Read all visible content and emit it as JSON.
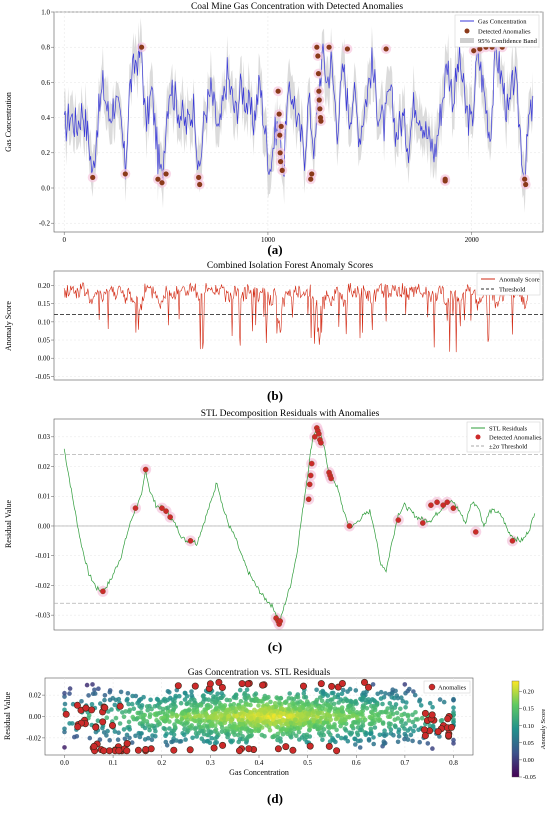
{
  "panels": {
    "a": {
      "label": "(a)"
    },
    "b": {
      "label": "(b)"
    },
    "c": {
      "label": "(c)"
    },
    "d": {
      "label": "(d)"
    }
  },
  "colors": {
    "gas_line": "#3a3ad8",
    "band": "#cfcfcf",
    "anomaly_a": "#8b3a1a",
    "score_line": "#d22a14",
    "threshold": "#333333",
    "stl_line": "#2e9c3a",
    "anomaly_c": "#cc2a2a",
    "highlight": "#f6c7de",
    "colormap": [
      "#440154",
      "#3b528b",
      "#21918c",
      "#5ec962",
      "#fde725"
    ]
  },
  "chart_data": [
    {
      "type": "line",
      "title": "Coal Mine Gas Concentration with Detected Anomalies",
      "xlabel": "",
      "ylabel": "Gas Concentration",
      "xlim": [
        -50,
        2350
      ],
      "ylim": [
        -0.25,
        1.0
      ],
      "xticks": [
        0,
        1000,
        2000
      ],
      "xtick_labels": [
        "0",
        "1000",
        "2000"
      ],
      "yticks": [
        -0.2,
        0.0,
        0.2,
        0.4,
        0.6,
        0.8,
        1.0
      ],
      "ytick_labels": [
        "-0.2",
        "0.0",
        "0.2",
        "0.4",
        "0.6",
        "0.8",
        "1.0"
      ],
      "grid": true,
      "legend_position": "top-right",
      "legend": [
        "Gas Concentration",
        "Detected Anomalies",
        "95% Confidence Band"
      ],
      "series_anchors": [
        [
          0,
          0.33
        ],
        [
          30,
          0.42
        ],
        [
          60,
          0.35
        ],
        [
          90,
          0.45
        ],
        [
          120,
          0.28
        ],
        [
          140,
          0.06
        ],
        [
          160,
          0.35
        ],
        [
          190,
          0.58
        ],
        [
          220,
          0.4
        ],
        [
          250,
          0.5
        ],
        [
          280,
          0.35
        ],
        [
          300,
          0.1
        ],
        [
          320,
          0.55
        ],
        [
          350,
          0.72
        ],
        [
          380,
          0.78
        ],
        [
          400,
          0.35
        ],
        [
          430,
          0.55
        ],
        [
          460,
          0.18
        ],
        [
          480,
          0.04
        ],
        [
          500,
          0.4
        ],
        [
          520,
          0.6
        ],
        [
          560,
          0.45
        ],
        [
          600,
          0.35
        ],
        [
          640,
          0.48
        ],
        [
          660,
          0.05
        ],
        [
          690,
          0.42
        ],
        [
          720,
          0.55
        ],
        [
          760,
          0.3
        ],
        [
          800,
          0.65
        ],
        [
          840,
          0.42
        ],
        [
          870,
          0.58
        ],
        [
          900,
          0.47
        ],
        [
          930,
          0.38
        ],
        [
          960,
          0.6
        ],
        [
          990,
          0.28
        ],
        [
          1010,
          0.12
        ],
        [
          1040,
          0.35
        ],
        [
          1060,
          0.3
        ],
        [
          1080,
          0.1
        ],
        [
          1090,
          0.45
        ],
        [
          1120,
          0.55
        ],
        [
          1150,
          0.35
        ],
        [
          1180,
          0.2
        ],
        [
          1200,
          0.5
        ],
        [
          1230,
          0.2
        ],
        [
          1250,
          0.56
        ],
        [
          1270,
          0.78
        ],
        [
          1290,
          0.6
        ],
        [
          1310,
          0.72
        ],
        [
          1340,
          0.35
        ],
        [
          1370,
          0.68
        ],
        [
          1400,
          0.4
        ],
        [
          1420,
          0.55
        ],
        [
          1450,
          0.3
        ],
        [
          1480,
          0.5
        ],
        [
          1510,
          0.7
        ],
        [
          1540,
          0.45
        ],
        [
          1570,
          0.35
        ],
        [
          1600,
          0.55
        ],
        [
          1630,
          0.3
        ],
        [
          1660,
          0.4
        ],
        [
          1690,
          0.25
        ],
        [
          1720,
          0.5
        ],
        [
          1750,
          0.42
        ],
        [
          1780,
          0.3
        ],
        [
          1820,
          0.2
        ],
        [
          1850,
          0.45
        ],
        [
          1880,
          0.72
        ],
        [
          1910,
          0.5
        ],
        [
          1940,
          0.75
        ],
        [
          1970,
          0.45
        ],
        [
          2000,
          0.35
        ],
        [
          2030,
          0.78
        ],
        [
          2060,
          0.55
        ],
        [
          2090,
          0.3
        ],
        [
          2120,
          0.78
        ],
        [
          2150,
          0.6
        ],
        [
          2180,
          0.4
        ],
        [
          2210,
          0.65
        ],
        [
          2240,
          0.3
        ],
        [
          2260,
          0.02
        ],
        [
          2280,
          0.38
        ],
        [
          2300,
          0.45
        ]
      ],
      "anomalies": [
        [
          140,
          0.06
        ],
        [
          300,
          0.08
        ],
        [
          380,
          0.8
        ],
        [
          460,
          0.05
        ],
        [
          480,
          0.03
        ],
        [
          500,
          0.08
        ],
        [
          660,
          0.06
        ],
        [
          665,
          0.02
        ],
        [
          1050,
          0.55
        ],
        [
          1055,
          0.42
        ],
        [
          1058,
          0.3
        ],
        [
          1060,
          0.2
        ],
        [
          1062,
          0.15
        ],
        [
          1065,
          0.35
        ],
        [
          1070,
          0.1
        ],
        [
          1210,
          0.05
        ],
        [
          1215,
          0.08
        ],
        [
          1240,
          0.8
        ],
        [
          1245,
          0.75
        ],
        [
          1248,
          0.65
        ],
        [
          1250,
          0.55
        ],
        [
          1252,
          0.5
        ],
        [
          1255,
          0.45
        ],
        [
          1258,
          0.4
        ],
        [
          1260,
          0.38
        ],
        [
          1300,
          0.8
        ],
        [
          1390,
          0.79
        ],
        [
          1580,
          0.79
        ],
        [
          1870,
          0.04
        ],
        [
          1870,
          0.05
        ],
        [
          2010,
          0.78
        ],
        [
          2040,
          0.79
        ],
        [
          2070,
          0.8
        ],
        [
          2100,
          0.8
        ],
        [
          2150,
          0.8
        ],
        [
          2260,
          0.05
        ],
        [
          2265,
          0.02
        ]
      ]
    },
    {
      "type": "line",
      "title": "Combined Isolation Forest Anomaly Scores",
      "xlabel": "",
      "ylabel": "Anomaly Score",
      "xlim": [
        -50,
        2350
      ],
      "ylim": [
        -0.06,
        0.24
      ],
      "yticks": [
        -0.05,
        0.0,
        0.05,
        0.1,
        0.15,
        0.2
      ],
      "ytick_labels": [
        "-0.05",
        "0.00",
        "0.05",
        "0.10",
        "0.15",
        "0.20"
      ],
      "threshold": 0.12,
      "grid": true,
      "legend_position": "top-right",
      "legend": [
        "Anomaly Score",
        "Threshold"
      ]
    },
    {
      "type": "line",
      "title": "STL Decomposition Residuals with Anomalies",
      "xlabel": "",
      "ylabel": "Residual Value",
      "xlim": [
        -50,
        2350
      ],
      "ylim": [
        -0.035,
        0.036
      ],
      "yticks": [
        -0.03,
        -0.02,
        -0.01,
        0.0,
        0.01,
        0.02,
        0.03
      ],
      "ytick_labels": [
        "-0.03",
        "-0.02",
        "-0.01",
        "0.00",
        "0.01",
        "0.02",
        "0.03"
      ],
      "upper_threshold": 0.024,
      "lower_threshold": -0.026,
      "grid": true,
      "legend_position": "top-right",
      "legend": [
        "STL Residuals",
        "Detected Anomalies",
        "±2σ Threshold"
      ],
      "series_anchors": [
        [
          0,
          0.026
        ],
        [
          40,
          0.01
        ],
        [
          80,
          -0.005
        ],
        [
          120,
          -0.016
        ],
        [
          160,
          -0.021
        ],
        [
          190,
          -0.022
        ],
        [
          230,
          -0.018
        ],
        [
          280,
          -0.01
        ],
        [
          320,
          0.0
        ],
        [
          350,
          0.006
        ],
        [
          380,
          0.01
        ],
        [
          400,
          0.019
        ],
        [
          420,
          0.012
        ],
        [
          450,
          0.007
        ],
        [
          480,
          0.006
        ],
        [
          500,
          0.005
        ],
        [
          520,
          0.003
        ],
        [
          550,
          0.0
        ],
        [
          580,
          -0.004
        ],
        [
          600,
          -0.005
        ],
        [
          620,
          -0.004
        ],
        [
          650,
          -0.006
        ],
        [
          680,
          0.0
        ],
        [
          720,
          0.008
        ],
        [
          750,
          0.015
        ],
        [
          780,
          0.006
        ],
        [
          810,
          0.0
        ],
        [
          840,
          -0.004
        ],
        [
          870,
          -0.01
        ],
        [
          900,
          -0.015
        ],
        [
          940,
          -0.02
        ],
        [
          980,
          -0.024
        ],
        [
          1010,
          -0.026
        ],
        [
          1030,
          -0.028
        ],
        [
          1050,
          -0.031
        ],
        [
          1060,
          -0.032
        ],
        [
          1080,
          -0.027
        ],
        [
          1110,
          -0.02
        ],
        [
          1140,
          -0.01
        ],
        [
          1160,
          0.0
        ],
        [
          1180,
          0.01
        ],
        [
          1200,
          0.02
        ],
        [
          1220,
          0.03
        ],
        [
          1240,
          0.033
        ],
        [
          1260,
          0.03
        ],
        [
          1280,
          0.025
        ],
        [
          1300,
          0.018
        ],
        [
          1320,
          0.016
        ],
        [
          1340,
          0.013
        ],
        [
          1360,
          0.008
        ],
        [
          1380,
          0.003
        ],
        [
          1400,
          0.0
        ],
        [
          1420,
          0.0
        ],
        [
          1460,
          0.003
        ],
        [
          1500,
          0.005
        ],
        [
          1520,
          0.0
        ],
        [
          1550,
          -0.012
        ],
        [
          1580,
          -0.015
        ],
        [
          1610,
          -0.005
        ],
        [
          1640,
          0.004
        ],
        [
          1670,
          0.007
        ],
        [
          1700,
          0.005
        ],
        [
          1730,
          0.003
        ],
        [
          1770,
          0.002
        ],
        [
          1800,
          0.002
        ],
        [
          1840,
          0.005
        ],
        [
          1880,
          0.008
        ],
        [
          1910,
          0.008
        ],
        [
          1940,
          0.005
        ],
        [
          1970,
          0.001
        ],
        [
          2000,
          0.008
        ],
        [
          2030,
          0.007
        ],
        [
          2060,
          0.0
        ],
        [
          2090,
          0.005
        ],
        [
          2120,
          0.005
        ],
        [
          2150,
          0.003
        ],
        [
          2180,
          -0.002
        ],
        [
          2210,
          -0.004
        ],
        [
          2240,
          -0.005
        ],
        [
          2260,
          -0.004
        ],
        [
          2290,
          0.0
        ],
        [
          2310,
          0.005
        ]
      ],
      "anomalies": [
        [
          190,
          -0.022
        ],
        [
          350,
          0.006
        ],
        [
          400,
          0.019
        ],
        [
          480,
          0.006
        ],
        [
          500,
          0.005
        ],
        [
          520,
          0.003
        ],
        [
          620,
          -0.005
        ],
        [
          1040,
          -0.031
        ],
        [
          1050,
          -0.032
        ],
        [
          1055,
          -0.033
        ],
        [
          1060,
          -0.032
        ],
        [
          1200,
          0.009
        ],
        [
          1205,
          0.014
        ],
        [
          1210,
          0.017
        ],
        [
          1215,
          0.021
        ],
        [
          1230,
          0.03
        ],
        [
          1240,
          0.033
        ],
        [
          1245,
          0.032
        ],
        [
          1250,
          0.031
        ],
        [
          1255,
          0.029
        ],
        [
          1260,
          0.028
        ],
        [
          1300,
          0.018
        ],
        [
          1305,
          0.017
        ],
        [
          1310,
          0.016
        ],
        [
          1400,
          0.0
        ],
        [
          1640,
          0.002
        ],
        [
          1760,
          0.001
        ],
        [
          1800,
          0.007
        ],
        [
          1830,
          0.008
        ],
        [
          1860,
          0.007
        ],
        [
          1880,
          0.008
        ],
        [
          1910,
          0.006
        ],
        [
          2020,
          -0.002
        ],
        [
          2200,
          -0.005
        ]
      ]
    },
    {
      "type": "scatter",
      "title": "Gas Concentration vs. STL Residuals",
      "xlabel": "Gas Concentration",
      "ylabel": "Residual Value",
      "xlim": [
        -0.04,
        0.84
      ],
      "ylim": [
        -0.036,
        0.036
      ],
      "xticks": [
        0.0,
        0.1,
        0.2,
        0.3,
        0.4,
        0.5,
        0.6,
        0.7,
        0.8
      ],
      "xtick_labels": [
        "0.0",
        "0.1",
        "0.2",
        "0.3",
        "0.4",
        "0.5",
        "0.6",
        "0.7",
        "0.8"
      ],
      "yticks": [
        -0.02,
        0.0,
        0.02
      ],
      "ytick_labels": [
        "-0.02",
        "0.00",
        "0.02"
      ],
      "grid": true,
      "legend_position": "top-right",
      "legend": [
        "Anomalies"
      ],
      "colorbar": {
        "label": "Anomaly Score",
        "range": [
          -0.05,
          0.23
        ],
        "ticks": [
          -0.05,
          0.0,
          0.05,
          0.1,
          0.15,
          0.2
        ],
        "tick_labels": [
          "-0.05",
          "0.00",
          "0.05",
          "0.10",
          "0.15",
          "0.20"
        ]
      }
    }
  ]
}
